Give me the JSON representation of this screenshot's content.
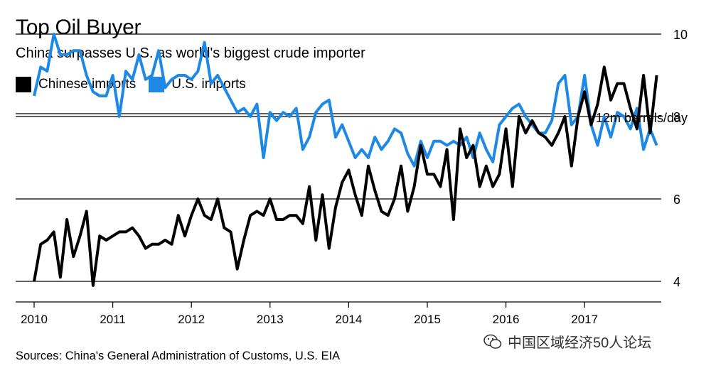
{
  "header": {
    "title": "Top Oil Buyer",
    "subtitle": "China surpasses U.S. as world's biggest crude importer"
  },
  "footer": {
    "source": "Sources: China's General Administration of Customs, U.S. EIA",
    "watermark": "中国区域经济50人论坛",
    "watermark_icon": "wechat-icon"
  },
  "colors": {
    "china": "#000000",
    "us": "#1e88e5",
    "grid": "#000000",
    "axis_text": "#000000"
  },
  "chart_data": {
    "type": "line",
    "title": "Top Oil Buyer",
    "subtitle": "China surpasses U.S. as world's biggest crude importer",
    "ylabel": "12m barrels/day",
    "ylim": [
      3.2,
      10.6
    ],
    "xlim": [
      2009.9,
      2018.0
    ],
    "yticks": [
      4,
      6,
      8,
      10
    ],
    "xticks": [
      "2010",
      "2011",
      "2012",
      "2013",
      "2014",
      "2015",
      "2016",
      "2017"
    ],
    "grid": true,
    "legend_position": "top-left",
    "x_start": 2010.0,
    "x_step_months": 1,
    "series": [
      {
        "name": "Chinese imports",
        "color": "#000000",
        "values": [
          4.0,
          4.9,
          5.0,
          5.2,
          4.1,
          5.5,
          4.6,
          5.1,
          5.7,
          3.9,
          5.1,
          5.0,
          5.1,
          5.2,
          5.2,
          5.3,
          5.1,
          4.8,
          4.9,
          4.9,
          5.0,
          4.9,
          5.6,
          5.1,
          5.6,
          6.0,
          5.6,
          5.5,
          6.0,
          5.3,
          5.2,
          4.3,
          5.0,
          5.6,
          5.7,
          5.6,
          6.0,
          5.5,
          5.5,
          5.6,
          5.6,
          5.4,
          6.3,
          5.0,
          6.1,
          4.8,
          5.8,
          6.4,
          6.7,
          6.1,
          5.6,
          6.8,
          6.2,
          5.7,
          5.6,
          6.0,
          6.8,
          5.7,
          6.3,
          7.3,
          6.6,
          6.6,
          6.3,
          7.2,
          5.5,
          7.7,
          7.0,
          7.3,
          6.3,
          6.8,
          6.3,
          6.6,
          7.7,
          6.3,
          8.0,
          7.6,
          7.9,
          7.6,
          7.5,
          7.3,
          7.6,
          8.0,
          6.8,
          8.0,
          8.6,
          7.8,
          8.3,
          9.2,
          8.4,
          8.8,
          8.8,
          8.2,
          7.7,
          9.0,
          7.6,
          9.0
        ]
      },
      {
        "name": "U.S. imports",
        "color": "#1e88e5",
        "values": [
          8.5,
          9.2,
          9.1,
          10.0,
          9.5,
          9.5,
          9.6,
          9.6,
          9.0,
          8.6,
          8.5,
          8.5,
          9.0,
          8.0,
          9.1,
          8.9,
          9.5,
          8.9,
          9.0,
          9.6,
          8.7,
          8.9,
          9.0,
          9.0,
          8.9,
          9.1,
          9.8,
          8.8,
          9.0,
          8.7,
          8.4,
          8.1,
          8.2,
          8.0,
          8.3,
          7.0,
          8.1,
          7.9,
          8.1,
          8.0,
          8.2,
          7.2,
          7.5,
          8.1,
          8.3,
          8.4,
          7.5,
          7.8,
          7.4,
          7.0,
          7.2,
          7.0,
          7.5,
          7.2,
          7.4,
          7.7,
          7.6,
          7.1,
          6.8,
          7.4,
          7.0,
          7.4,
          7.4,
          7.3,
          7.4,
          7.3,
          7.5,
          7.0,
          7.6,
          7.2,
          6.9,
          7.8,
          8.0,
          8.2,
          8.3,
          8.0,
          7.8,
          7.6,
          7.6,
          7.9,
          8.8,
          9.0,
          7.8,
          8.0,
          9.0,
          7.8,
          7.3,
          8.0,
          7.5,
          8.1,
          8.0,
          7.7,
          8.2,
          7.2,
          7.7,
          7.3
        ]
      }
    ]
  }
}
